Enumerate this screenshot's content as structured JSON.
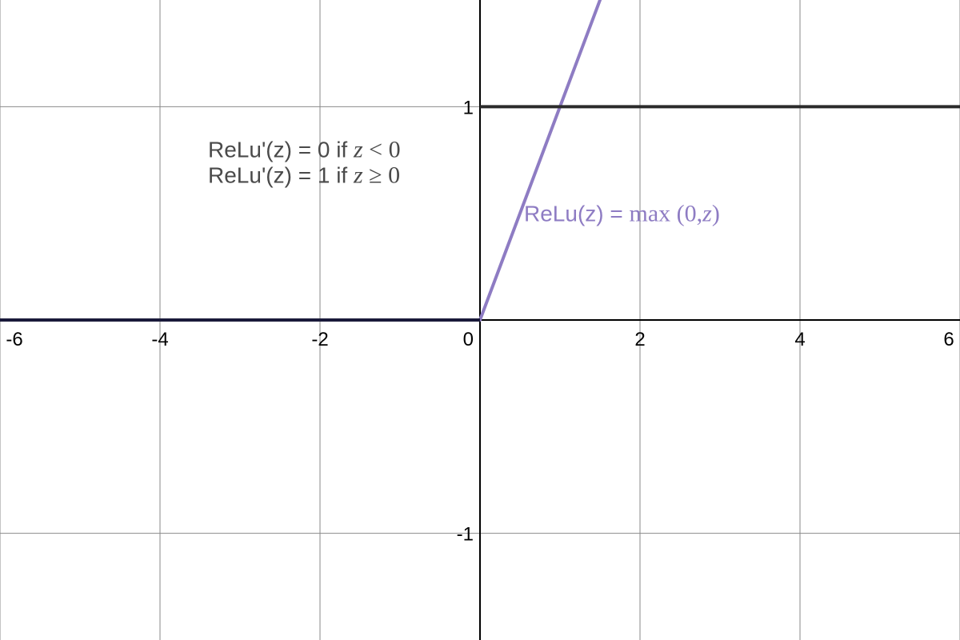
{
  "chart_data": {
    "type": "line",
    "xlim": [
      -6,
      6
    ],
    "ylim": [
      -1.5,
      1.5
    ],
    "grid": true,
    "x_ticks": [
      {
        "value": -6,
        "label": "-6"
      },
      {
        "value": -4,
        "label": "-4"
      },
      {
        "value": -2,
        "label": "-2"
      },
      {
        "value": 0,
        "label": "0"
      },
      {
        "value": 2,
        "label": "2"
      },
      {
        "value": 4,
        "label": "4"
      },
      {
        "value": 6,
        "label": "6"
      }
    ],
    "y_ticks": [
      {
        "value": 1,
        "label": "1"
      },
      {
        "value": -1,
        "label": "-1"
      }
    ],
    "series": [
      {
        "key": "relu",
        "color": "#8e7cc3",
        "points": [
          {
            "x": -6,
            "y": 0
          },
          {
            "x": 0,
            "y": 0
          },
          {
            "x": 1.6,
            "y": 1.6
          }
        ]
      },
      {
        "key": "relu_derivative_negative",
        "color": "#1a1a3a",
        "points": [
          {
            "x": -6,
            "y": 0
          },
          {
            "x": 0,
            "y": 0
          }
        ]
      },
      {
        "key": "relu_derivative_positive",
        "color": "#2b2b2b",
        "points": [
          {
            "x": 0,
            "y": 1
          },
          {
            "x": 6,
            "y": 1
          }
        ]
      }
    ],
    "annotations": {
      "relu": {
        "color": "#8e7cc3",
        "x": 0.55,
        "y": 0.5,
        "prefix": "ReLu(z) = ",
        "fn": "max",
        "open": " (0,",
        "var": "z",
        "close": ")"
      },
      "derivative": {
        "color": "#4a4a4a",
        "x": -3.4,
        "lines": [
          {
            "y": 0.8,
            "prefix": "ReLu'(z) = 0 if ",
            "var": "z",
            "op": " < 0"
          },
          {
            "y": 0.68,
            "prefix": "ReLu'(z) = 1 if ",
            "var": "z",
            "op": " ≥ 0"
          }
        ]
      }
    }
  }
}
